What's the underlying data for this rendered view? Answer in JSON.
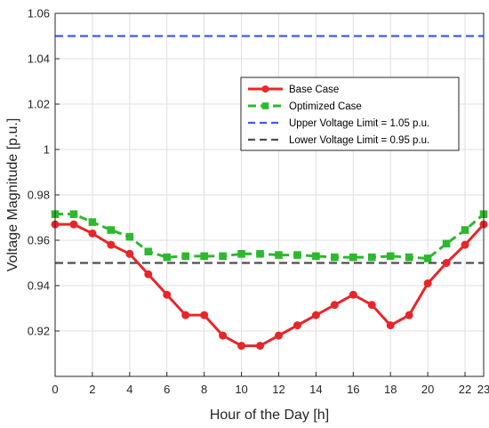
{
  "chart_data": {
    "type": "line",
    "xlabel": "Hour of the Day [h]",
    "ylabel": "Voltage Magnitude [p.u.]",
    "xlim": [
      0,
      23
    ],
    "ylim": [
      0.9,
      1.06
    ],
    "x_ticks": [
      0,
      2,
      4,
      6,
      8,
      10,
      12,
      14,
      16,
      18,
      20,
      22,
      23
    ],
    "y_ticks": [
      0.92,
      0.94,
      0.96,
      0.98,
      1,
      1.02,
      1.04,
      1.06
    ],
    "y_tick_labels": [
      "0.92",
      "0.94",
      "0.96",
      "0.98",
      "1",
      "1.02",
      "1.04",
      "1.06"
    ],
    "grid": true,
    "legend_position": "upper-right",
    "x": [
      0,
      1,
      2,
      3,
      4,
      5,
      6,
      7,
      8,
      9,
      10,
      11,
      12,
      13,
      14,
      15,
      16,
      17,
      18,
      19,
      20,
      21,
      22,
      23
    ],
    "series": [
      {
        "name": "Base Case",
        "color": "#e8262a",
        "style": "solid",
        "marker": "circle",
        "values": [
          0.967,
          0.967,
          0.963,
          0.958,
          0.954,
          0.945,
          0.936,
          0.927,
          0.927,
          0.918,
          0.9135,
          0.9135,
          0.918,
          0.9225,
          0.927,
          0.9315,
          0.936,
          0.9315,
          0.9225,
          0.927,
          0.941,
          0.95,
          0.958,
          0.967
        ]
      },
      {
        "name": "Optimized Case",
        "color": "#2eb82e",
        "style": "dashed",
        "marker": "square",
        "values": [
          0.9715,
          0.9715,
          0.968,
          0.9645,
          0.9615,
          0.955,
          0.9525,
          0.953,
          0.953,
          0.953,
          0.954,
          0.954,
          0.9535,
          0.9535,
          0.953,
          0.9525,
          0.9525,
          0.9525,
          0.953,
          0.9525,
          0.952,
          0.9585,
          0.9645,
          0.9715
        ]
      }
    ],
    "reference_lines": [
      {
        "name": "Upper Voltage Limit = 1.05 p.u.",
        "value": 1.05,
        "color": "#3d5cf0",
        "style": "dashed"
      },
      {
        "name": "Lower Voltage Limit = 0.95 p.u.",
        "value": 0.95,
        "color": "#4d4d4d",
        "style": "dashed"
      }
    ]
  }
}
